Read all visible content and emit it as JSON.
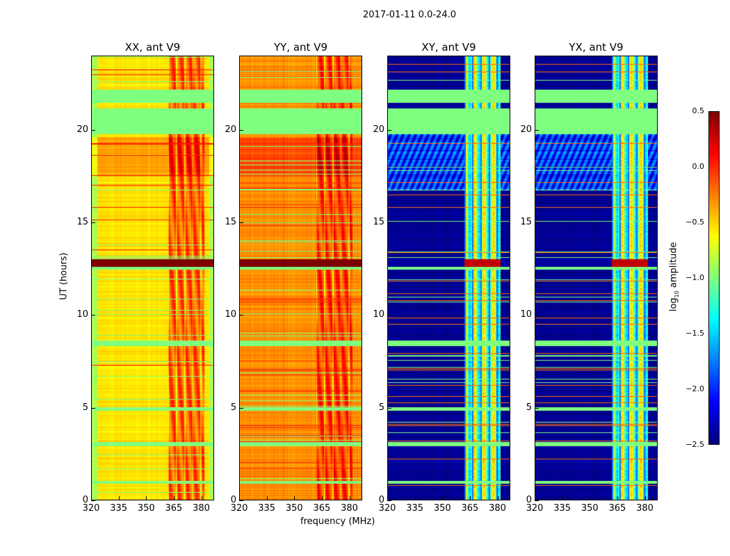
{
  "suptitle": "2017-01-11 0.0-24.0",
  "ylabel": "UT (hours)",
  "xlabel": "frequency (MHz)",
  "chart_data": [
    {
      "type": "heatmap",
      "title": "XX, ant V9",
      "xlim": [
        320,
        387
      ],
      "ylim": [
        0,
        24
      ],
      "base_level": -0.55,
      "band_level": -0.15,
      "polarization": "parallel"
    },
    {
      "type": "heatmap",
      "title": "YY, ant V9",
      "xlim": [
        320,
        387
      ],
      "ylim": [
        0,
        24
      ],
      "base_level": -0.3,
      "band_level": -0.05,
      "polarization": "parallel"
    },
    {
      "type": "heatmap",
      "title": "XY, ant V9",
      "xlim": [
        320,
        387
      ],
      "ylim": [
        0,
        24
      ],
      "base_level": -2.45,
      "band_level": -1.0,
      "polarization": "cross"
    },
    {
      "type": "heatmap",
      "title": "YX, ant V9",
      "xlim": [
        320,
        387
      ],
      "ylim": [
        0,
        24
      ],
      "base_level": -2.45,
      "band_level": -1.0,
      "polarization": "cross"
    }
  ],
  "xticks": [
    "320",
    "335",
    "350",
    "365",
    "380"
  ],
  "xtick_values": [
    320,
    335,
    350,
    365,
    380
  ],
  "yticks": [
    "0",
    "5",
    "10",
    "15",
    "20"
  ],
  "ytick_values": [
    0,
    5,
    10,
    15,
    20
  ],
  "rfi_band_mhz": [
    362,
    382
  ],
  "flagged_hours": [
    [
      19.8,
      21.2
    ],
    [
      21.5,
      22.2
    ],
    [
      4.8,
      5.0
    ],
    [
      8.3,
      8.6
    ],
    [
      0.85,
      1.0
    ],
    [
      2.9,
      3.1
    ],
    [
      12.45,
      12.6
    ]
  ],
  "bright_hours": [
    [
      12.6,
      13.0
    ]
  ],
  "colorbar": {
    "label_main": "log",
    "label_sub": "10",
    "label_rest": " amplitude",
    "range": [
      -2.5,
      0.5
    ],
    "colormap": "jet",
    "ticks": [
      "0.5",
      "0.0",
      "−0.5",
      "−1.0",
      "−1.5",
      "−2.0",
      "−2.5"
    ],
    "tick_values": [
      0.5,
      0.0,
      -0.5,
      -1.0,
      -1.5,
      -2.0,
      -2.5
    ]
  }
}
